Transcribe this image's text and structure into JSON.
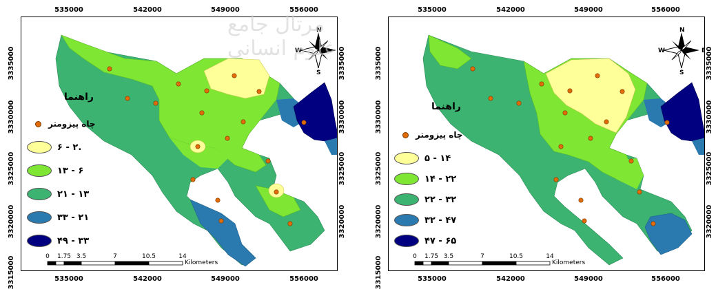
{
  "watermark": "مرتال جامع علوم انسانی",
  "compass": {
    "n": "N",
    "s": "S",
    "e": "E",
    "w": "W"
  },
  "well_color": "#e36c0a",
  "zone_colors": [
    "#ffff99",
    "#7fe633",
    "#3cb371",
    "#2a7ab0",
    "#000080"
  ],
  "left_map": {
    "x_ticks": [
      "535000",
      "542000",
      "549000",
      "556000"
    ],
    "y_ticks": [
      "3335000",
      "3330000",
      "3325000",
      "3320000",
      "3315000"
    ],
    "legend_title": "راهنما",
    "well_label": "چاه پیزومتر",
    "classes": [
      "۶ - ۲.",
      "۱۳ - ۶",
      "۲۱ - ۱۳",
      "۳۳ - ۲۱",
      "۴۹ - ۳۳"
    ],
    "scale_labels": [
      "0",
      "1.75",
      "3.5",
      "7",
      "10.5",
      "14"
    ],
    "scale_unit": "Kilometers"
  },
  "right_map": {
    "x_ticks": [
      "535000",
      "542000",
      "549000",
      "556000"
    ],
    "y_ticks": [
      "3335000",
      "3330000",
      "3325000",
      "3320000",
      "3315000"
    ],
    "legend_title": "راهنما",
    "well_label": "چاه پیزومتر",
    "classes": [
      "۵ - ۱۴",
      "۱۴ - ۲۲",
      "۲۲ - ۳۲",
      "۳۲ - ۴۷",
      "۴۷ - ۶۵"
    ],
    "scale_labels": [
      "0",
      "1.75",
      "3.5",
      "7",
      "10.5",
      "14"
    ],
    "scale_unit": "Kilometers"
  }
}
